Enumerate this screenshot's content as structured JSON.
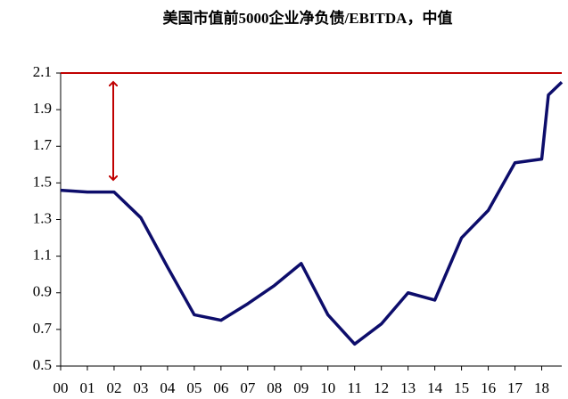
{
  "chart_data": {
    "type": "line",
    "title": "美国市值前5000企业净负债/EBITDA，中值",
    "x": [
      0,
      1,
      2,
      3,
      4,
      5,
      6,
      7,
      8,
      9,
      10,
      11,
      12,
      13,
      14,
      15,
      16,
      17,
      18,
      18.25,
      18.75
    ],
    "series": [
      {
        "name": null,
        "color": "#0d0d6b",
        "values": [
          1.46,
          1.45,
          1.45,
          1.31,
          1.04,
          0.78,
          0.75,
          0.84,
          0.94,
          1.06,
          0.78,
          0.62,
          0.73,
          0.9,
          0.86,
          1.2,
          1.35,
          1.61,
          1.63,
          1.98,
          2.05
        ]
      }
    ],
    "xlim": [
      0,
      18.75
    ],
    "xticks": [
      {
        "value": 0,
        "label": "00"
      },
      {
        "value": 1,
        "label": "01"
      },
      {
        "value": 2,
        "label": "02"
      },
      {
        "value": 3,
        "label": "03"
      },
      {
        "value": 4,
        "label": "04"
      },
      {
        "value": 5,
        "label": "05"
      },
      {
        "value": 6,
        "label": "06"
      },
      {
        "value": 7,
        "label": "07"
      },
      {
        "value": 8,
        "label": "08"
      },
      {
        "value": 9,
        "label": "09"
      },
      {
        "value": 10,
        "label": "10"
      },
      {
        "value": 11,
        "label": "11"
      },
      {
        "value": 12,
        "label": "12"
      },
      {
        "value": 13,
        "label": "13"
      },
      {
        "value": 14,
        "label": "14"
      },
      {
        "value": 15,
        "label": "15"
      },
      {
        "value": 16,
        "label": "16"
      },
      {
        "value": 17,
        "label": "17"
      },
      {
        "value": 18,
        "label": "18"
      }
    ],
    "ylim": [
      0.5,
      2.1
    ],
    "yticks": [
      0.5,
      0.7,
      0.9,
      1.1,
      1.3,
      1.5,
      1.7,
      1.9,
      2.1
    ],
    "reference_line": {
      "value": 2.1,
      "color": "#c00000"
    }
  }
}
